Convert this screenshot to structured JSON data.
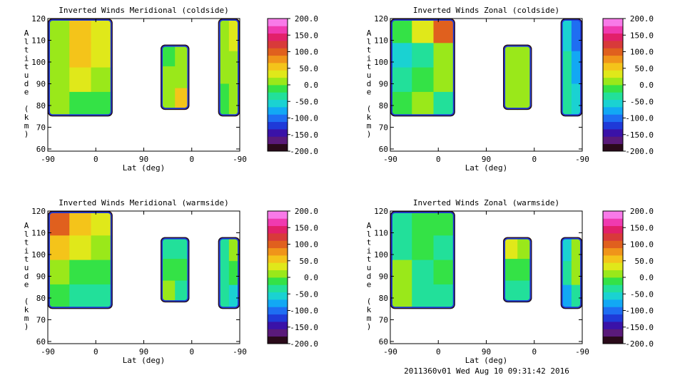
{
  "footer": "2011360v01 Wed Aug 10 09:31:42 2016",
  "colorbar": {
    "labels": [
      "200.0",
      "150.0",
      "100.0",
      "50.0",
      "0.0",
      "-50.0",
      "-100.0",
      "-150.0",
      "-200.0"
    ],
    "range": [
      -200,
      200
    ],
    "colors": [
      "#2a0a1a",
      "#5a1a7a",
      "#3a12a8",
      "#1f3ad8",
      "#1e6ef2",
      "#12a8f4",
      "#1ad2d2",
      "#22e09a",
      "#34e246",
      "#9ae81a",
      "#e0e81a",
      "#f4c41a",
      "#f0941a",
      "#e0601e",
      "#d83a3a",
      "#e2206a",
      "#f03ab0",
      "#f87ae8"
    ]
  },
  "chart_data": [
    {
      "type": "heatmap",
      "title": "Inverted Winds Meridional (coldside)",
      "xlabel": "Lat (deg)",
      "ylabel": "Altitude (km)",
      "xticks": [
        "-90",
        "0",
        "90",
        "0",
        "-90"
      ],
      "yticks": [
        "60",
        "70",
        "80",
        "90",
        "100",
        "110",
        "120"
      ],
      "ylim": [
        59,
        120
      ],
      "regions": [
        {
          "x": [
            -90,
            20
          ],
          "alt": [
            75,
            120
          ],
          "values": [
            [
              10,
              60,
              40
            ],
            [
              15,
              45,
              35
            ],
            [
              15,
              25,
              10
            ],
            [
              5,
              -10,
              -20
            ]
          ]
        },
        {
          "x": [
            -30,
            20
          ],
          "alt": [
            78,
            108
          ],
          "values": [
            [
              -10,
              5
            ],
            [
              10,
              20
            ],
            [
              15,
              45
            ]
          ]
        },
        {
          "x": [
            45,
            80
          ],
          "alt": [
            75,
            120
          ],
          "values": [
            [
              0,
              40
            ],
            [
              10,
              20
            ],
            [
              -20,
              10
            ]
          ]
        }
      ]
    },
    {
      "type": "heatmap",
      "title": "Inverted Winds Zonal (coldside)",
      "xlabel": "Lat (deg)",
      "ylabel": "Altitude (km)",
      "xticks": [
        "-90",
        "0",
        "90",
        "0",
        "-90"
      ],
      "yticks": [
        "60",
        "70",
        "80",
        "90",
        "100",
        "110",
        "120"
      ],
      "ylim": [
        59,
        120
      ],
      "regions": [
        {
          "x": [
            -90,
            20
          ],
          "alt": [
            75,
            120
          ],
          "values": [
            [
              -10,
              40,
              90
            ],
            [
              -60,
              -40,
              20
            ],
            [
              -30,
              -20,
              10
            ],
            [
              -10,
              20,
              -30
            ]
          ]
        },
        {
          "x": [
            -35,
            0
          ],
          "alt": [
            78,
            108
          ],
          "values": [
            [
              10,
              15
            ],
            [
              5,
              20
            ],
            [
              0,
              15
            ]
          ]
        },
        {
          "x": [
            40,
            80
          ],
          "alt": [
            75,
            120
          ],
          "values": [
            [
              -60,
              -110
            ],
            [
              -40,
              -80
            ],
            [
              -30,
              -60
            ]
          ]
        }
      ]
    },
    {
      "type": "heatmap",
      "title": "Inverted Winds Meridional (warmside)",
      "xlabel": "Lat (deg)",
      "ylabel": "Altitude (km)",
      "xticks": [
        "-90",
        "0",
        "90",
        "0",
        "-90"
      ],
      "yticks": [
        "60",
        "70",
        "80",
        "90",
        "100",
        "110",
        "120"
      ],
      "ylim": [
        59,
        120
      ],
      "regions": [
        {
          "x": [
            -90,
            20
          ],
          "alt": [
            75,
            120
          ],
          "values": [
            [
              110,
              60,
              40
            ],
            [
              60,
              30,
              10
            ],
            [
              20,
              -10,
              -20
            ],
            [
              -20,
              -30,
              -40
            ]
          ]
        },
        {
          "x": [
            -20,
            40
          ],
          "alt": [
            78,
            108
          ],
          "values": [
            [
              -40,
              -30
            ],
            [
              -20,
              -10
            ],
            [
              10,
              -30
            ]
          ]
        },
        {
          "x": [
            40,
            80
          ],
          "alt": [
            75,
            108
          ],
          "values": [
            [
              -30,
              20
            ],
            [
              -40,
              -20
            ],
            [
              -40,
              -60
            ]
          ]
        }
      ]
    },
    {
      "type": "heatmap",
      "title": "Inverted Winds Zonal (warmside)",
      "xlabel": "Lat (deg)",
      "ylabel": "Altitude (km)",
      "xticks": [
        "-90",
        "0",
        "90",
        "0",
        "-90"
      ],
      "yticks": [
        "60",
        "70",
        "80",
        "90",
        "100",
        "110",
        "120"
      ],
      "ylim": [
        59,
        120
      ],
      "regions": [
        {
          "x": [
            -90,
            20
          ],
          "alt": [
            75,
            120
          ],
          "values": [
            [
              -30,
              -20,
              -10
            ],
            [
              -40,
              -20,
              -30
            ],
            [
              0,
              -30,
              -20
            ],
            [
              20,
              -30,
              -40
            ]
          ]
        },
        {
          "x": [
            -30,
            30
          ],
          "alt": [
            78,
            108
          ],
          "values": [
            [
              30,
              20
            ],
            [
              -20,
              -10
            ],
            [
              -40,
              -30
            ]
          ]
        },
        {
          "x": [
            40,
            80
          ],
          "alt": [
            75,
            108
          ],
          "values": [
            [
              -60,
              20
            ],
            [
              -40,
              10
            ],
            [
              -70,
              -30
            ]
          ]
        }
      ]
    }
  ]
}
